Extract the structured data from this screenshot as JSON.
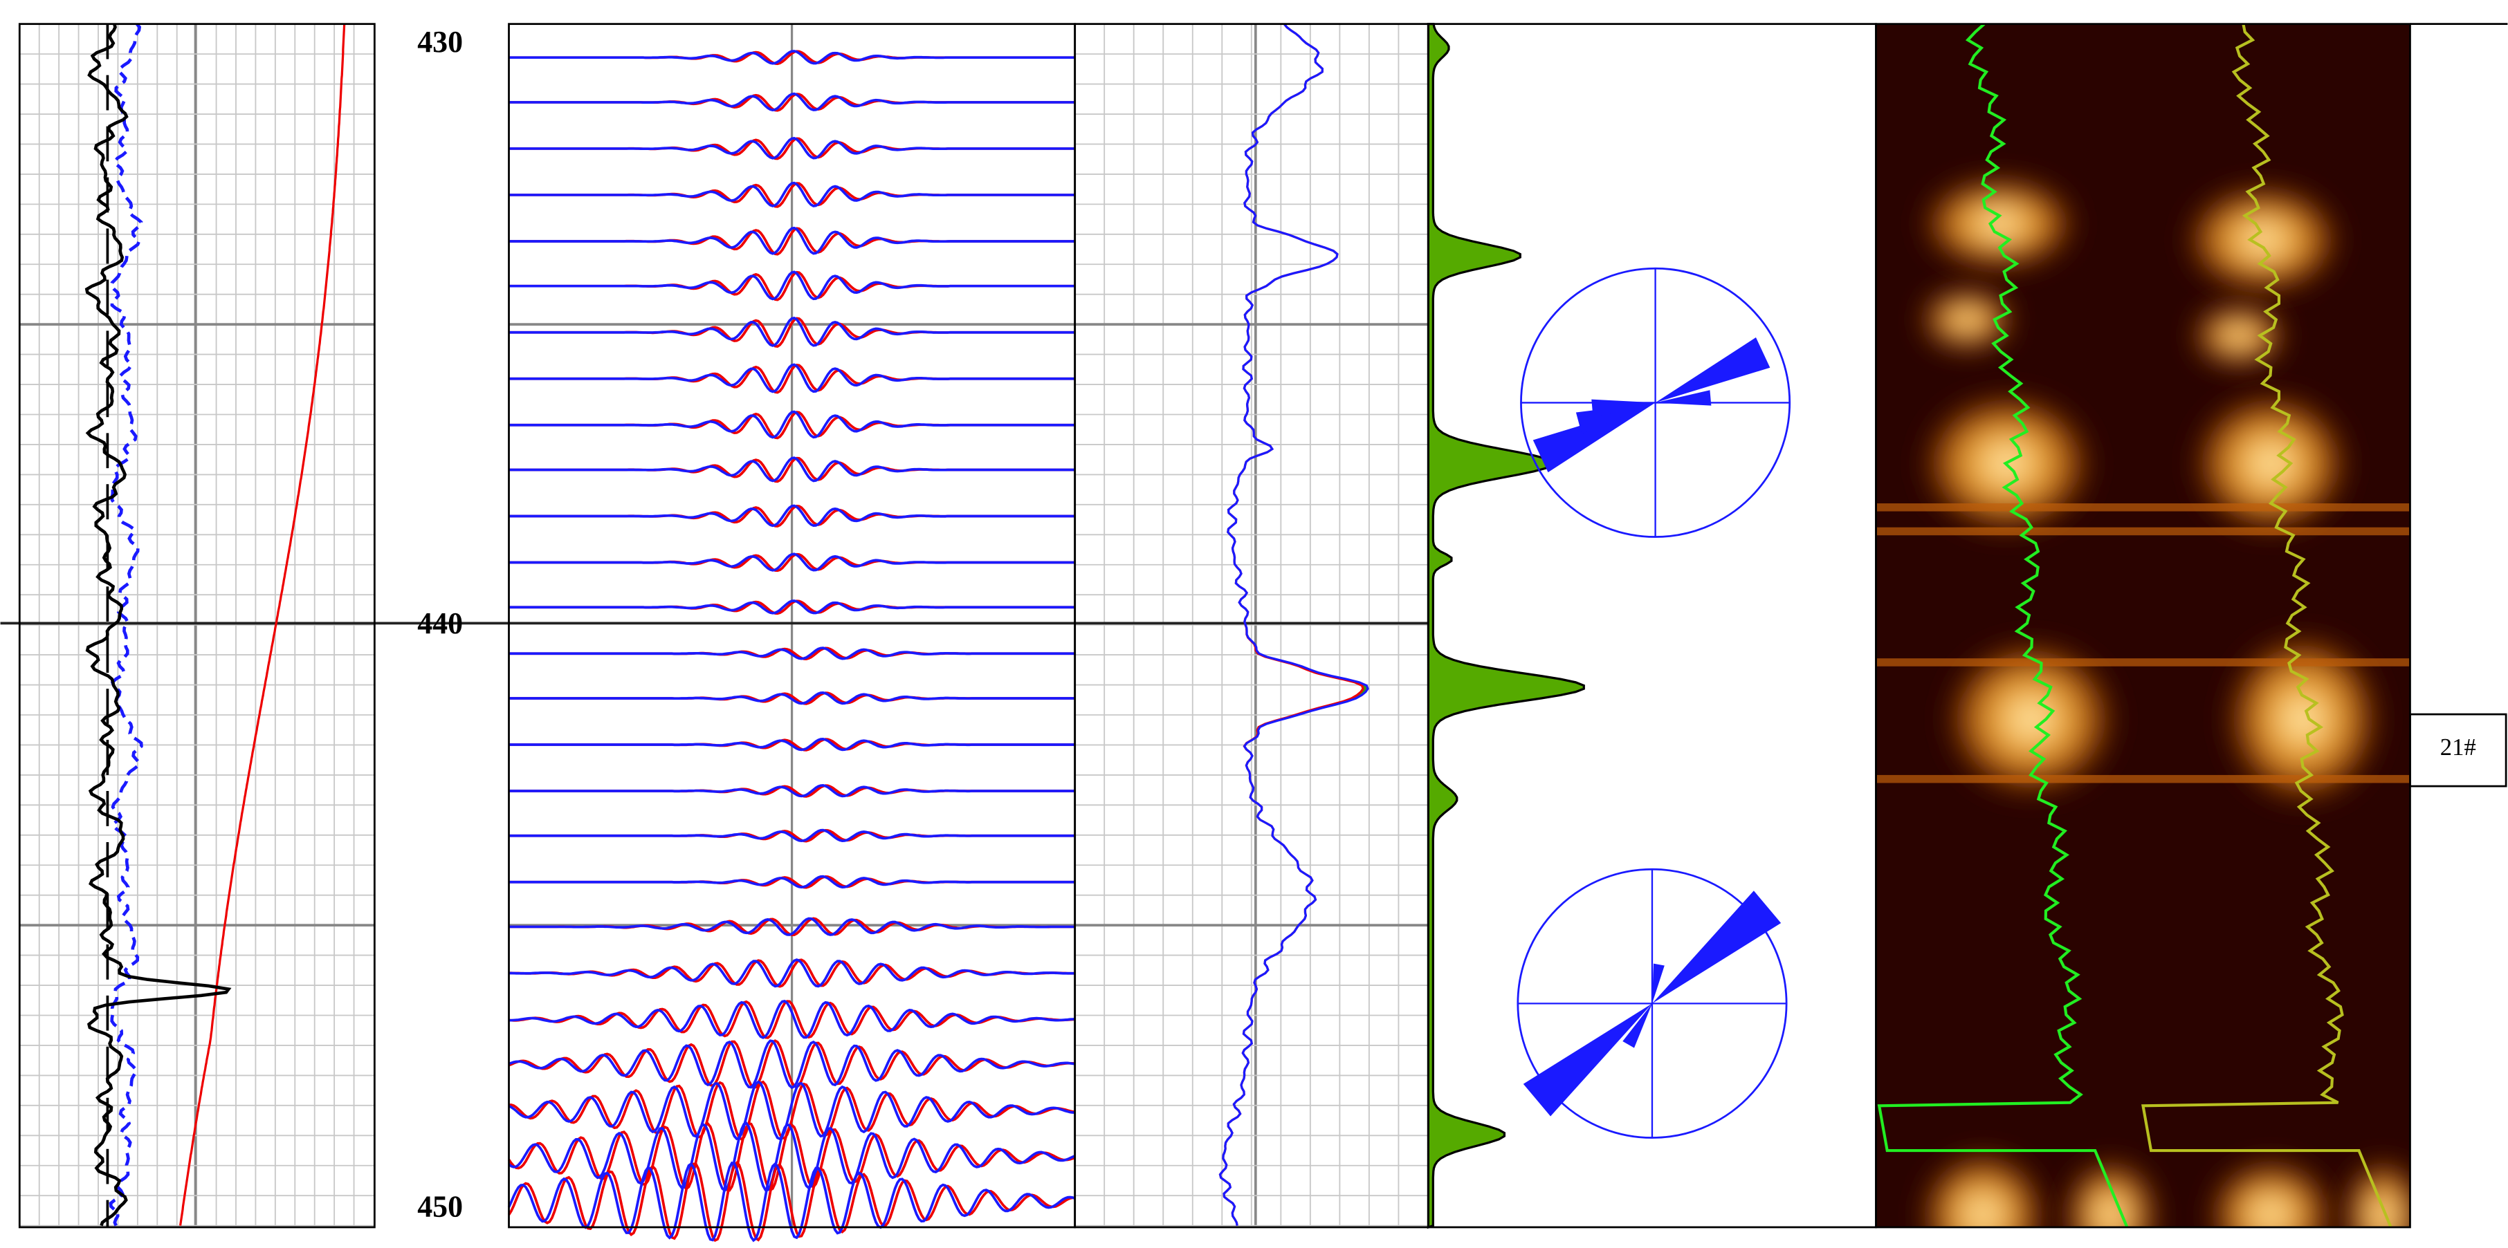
{
  "depth_labels": [
    430,
    440,
    450
  ],
  "well_label": "21#"
}
